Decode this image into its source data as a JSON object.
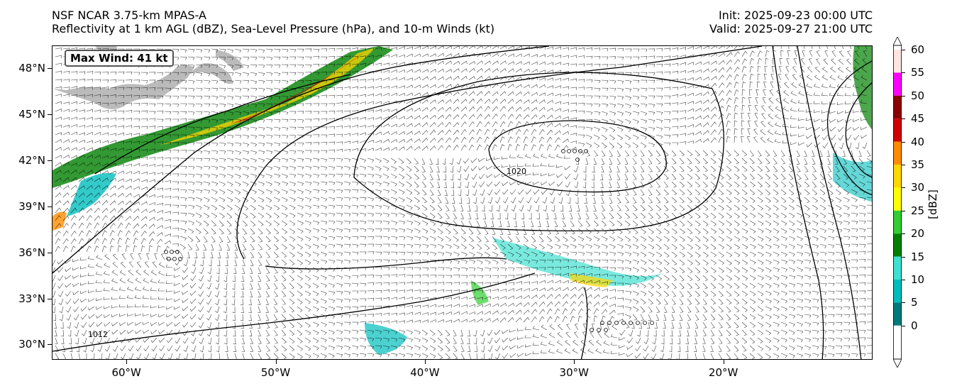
{
  "header": {
    "model": "NSF NCAR 3.75-km MPAS-A",
    "fields": "Reflectivity at 1 km AGL (dBZ), Sea-Level Pressure (hPa), and 10-m Winds (kt)",
    "init": "Init: 2025-09-23 00:00 UTC",
    "valid": "Valid: 2025-09-27 21:00 UTC"
  },
  "map": {
    "max_wind": "Max Wind: 41 kt",
    "extent": {
      "lon_min": -65,
      "lon_max": -10,
      "lat_min": 29,
      "lat_max": 49.5
    },
    "lat_labels": [
      {
        "text": "48°N",
        "lat": 48
      },
      {
        "text": "45°N",
        "lat": 45
      },
      {
        "text": "42°N",
        "lat": 42
      },
      {
        "text": "39°N",
        "lat": 39
      },
      {
        "text": "36°N",
        "lat": 36
      },
      {
        "text": "33°N",
        "lat": 33
      },
      {
        "text": "30°N",
        "lat": 30
      }
    ],
    "lon_labels": [
      {
        "text": "60°W",
        "lon": -60
      },
      {
        "text": "50°W",
        "lon": -50
      },
      {
        "text": "40°W",
        "lon": -40
      },
      {
        "text": "30°W",
        "lon": -30
      },
      {
        "text": "20°W",
        "lon": -20
      }
    ],
    "contour_labels": [
      "1012",
      "1020"
    ],
    "colors": {
      "land": "#b4b4b4",
      "isobar": "#000000",
      "barb": "#000000"
    }
  },
  "colorbar": {
    "unit": "[dBZ]",
    "levels": [
      "0",
      "5",
      "10",
      "15",
      "20",
      "25",
      "30",
      "35",
      "40",
      "45",
      "50",
      "55",
      "60"
    ],
    "colors": [
      "#007a7a",
      "#00bdbd",
      "#40e0d0",
      "#008000",
      "#32cd32",
      "#ffff00",
      "#ffd700",
      "#ff8c00",
      "#d00000",
      "#8b0000",
      "#ff00ff",
      "#ffe4e1"
    ]
  }
}
